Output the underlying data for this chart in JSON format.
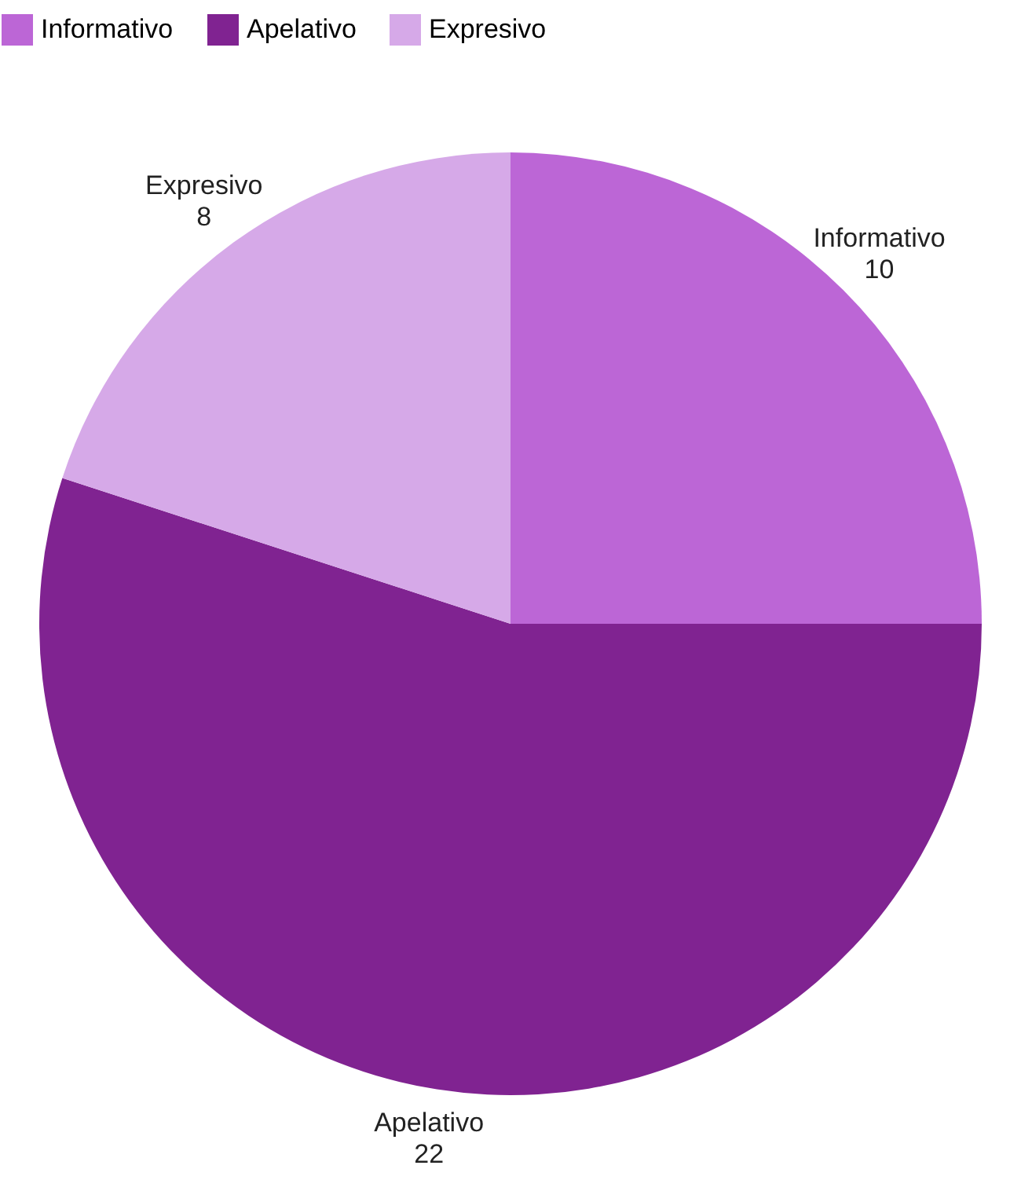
{
  "chart_data": {
    "type": "pie",
    "categories": [
      "Informativo",
      "Apelativo",
      "Expresivo"
    ],
    "values": [
      10,
      22,
      8
    ],
    "colors": [
      "#bc66d6",
      "#802391",
      "#d6a9e8"
    ],
    "legend": "top",
    "data_labels": true
  }
}
